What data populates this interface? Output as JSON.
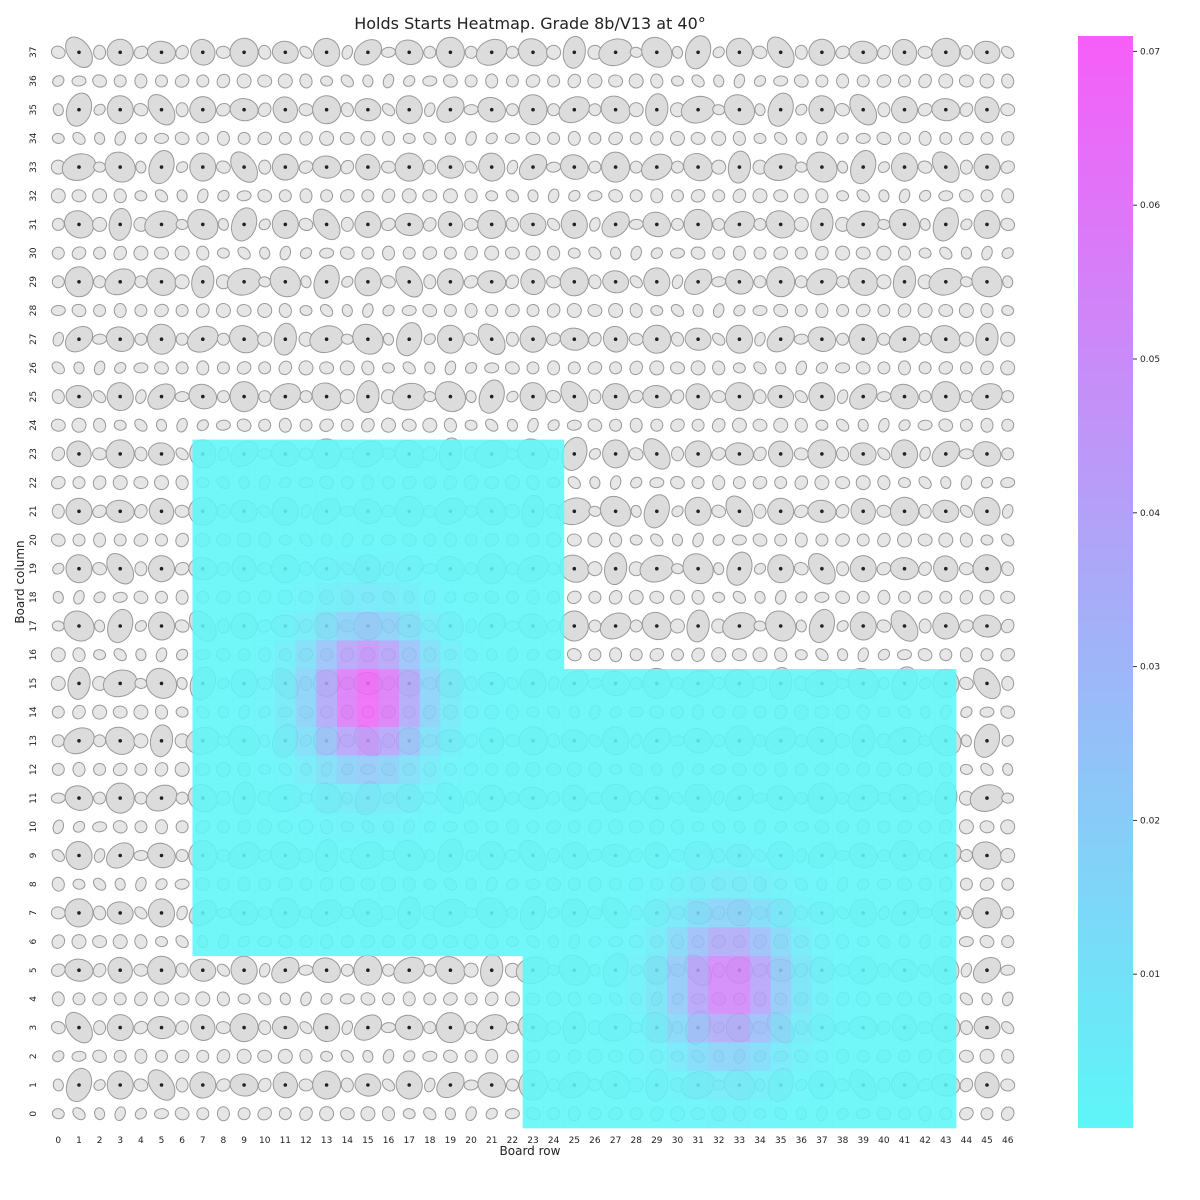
{
  "chart_data": {
    "type": "heatmap",
    "title": "Holds Starts Heatmap. Grade 8b/V13 at 40°",
    "xlabel": "Board row",
    "ylabel": "Board column",
    "x_ticks": [
      "0",
      "1",
      "2",
      "3",
      "4",
      "5",
      "6",
      "7",
      "8",
      "9",
      "10",
      "11",
      "12",
      "13",
      "14",
      "15",
      "16",
      "17",
      "18",
      "19",
      "20",
      "21",
      "22",
      "23",
      "24",
      "25",
      "26",
      "27",
      "28",
      "29",
      "30",
      "31",
      "32",
      "33",
      "34",
      "35",
      "36",
      "37",
      "38",
      "39",
      "40",
      "41",
      "42",
      "43",
      "44",
      "45",
      "46"
    ],
    "y_ticks": [
      "0",
      "1",
      "2",
      "3",
      "4",
      "5",
      "6",
      "7",
      "8",
      "9",
      "10",
      "11",
      "12",
      "13",
      "14",
      "15",
      "16",
      "17",
      "18",
      "19",
      "20",
      "21",
      "22",
      "23",
      "24",
      "25",
      "26",
      "27",
      "28",
      "29",
      "30",
      "31",
      "32",
      "33",
      "34",
      "35",
      "36",
      "37"
    ],
    "colorbar": {
      "min": 0,
      "max": 0.071,
      "ticks": [
        "0.01",
        "0.02",
        "0.03",
        "0.04",
        "0.05",
        "0.06",
        "0.07"
      ],
      "colors": [
        "#5ef6f8",
        "#f65ef8"
      ]
    },
    "grid": false,
    "hotspots": [
      {
        "x": 15,
        "y": 14.5,
        "peak": 0.071,
        "x_range": [
          7,
          24
        ],
        "y_range": [
          6,
          23
        ]
      },
      {
        "x": 32.5,
        "y": 4.5,
        "peak": 0.058,
        "x_range": [
          23,
          43
        ],
        "y_range": [
          0,
          15
        ]
      }
    ]
  }
}
